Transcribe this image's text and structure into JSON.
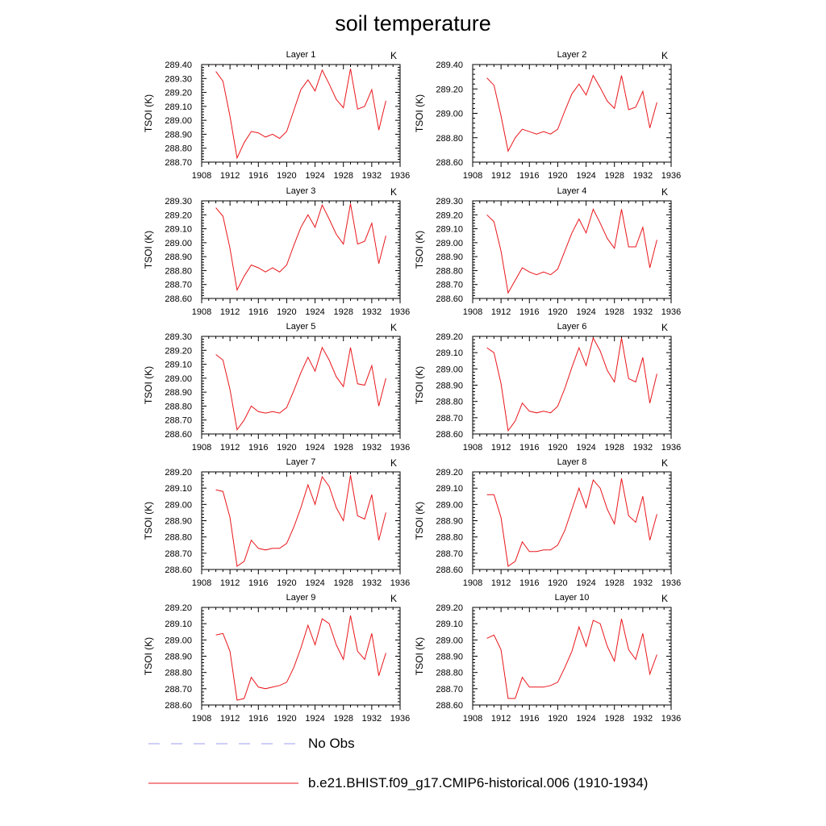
{
  "title": "soil temperature",
  "chart_data": {
    "type": "line",
    "title": "soil temperature",
    "ylabel": "TSOI  (K)",
    "units_label": "K",
    "x_ticks": [
      1908,
      1912,
      1916,
      1920,
      1924,
      1928,
      1932,
      1936
    ],
    "xlim": [
      1908,
      1936
    ],
    "grid": false,
    "legend": {
      "placement": "bottom",
      "entries": [
        {
          "label": "No Obs",
          "style": "dashed",
          "color": "#9c9cf2"
        },
        {
          "label": "b.e21.BHIST.f09_g17.CMIP6-historical.006 (1910-1934)",
          "style": "solid",
          "color": "#e8161b"
        }
      ]
    },
    "series_color": "#e8161b",
    "x": [
      1910,
      1911,
      1912,
      1913,
      1914,
      1915,
      1916,
      1917,
      1918,
      1919,
      1920,
      1921,
      1922,
      1923,
      1924,
      1925,
      1926,
      1927,
      1928,
      1929,
      1930,
      1931,
      1932,
      1933,
      1934
    ],
    "panels": [
      {
        "title": "Layer 1",
        "ylim": [
          288.7,
          289.4
        ],
        "y_ticks": [
          "288.70",
          "288.80",
          "288.90",
          "289.00",
          "289.10",
          "289.20",
          "289.30",
          "289.40"
        ],
        "values": [
          289.35,
          289.28,
          289.03,
          288.73,
          288.84,
          288.92,
          288.91,
          288.88,
          288.9,
          288.87,
          288.92,
          289.07,
          289.22,
          289.29,
          289.21,
          289.36,
          289.26,
          289.15,
          289.09,
          289.37,
          289.08,
          289.1,
          289.22,
          288.93,
          289.14
        ]
      },
      {
        "title": "Layer 2",
        "ylim": [
          288.6,
          289.4
        ],
        "y_ticks": [
          "288.60",
          "288.80",
          "289.00",
          "289.20",
          "289.40"
        ],
        "values": [
          289.29,
          289.23,
          288.98,
          288.69,
          288.8,
          288.87,
          288.85,
          288.83,
          288.85,
          288.83,
          288.87,
          289.02,
          289.16,
          289.24,
          289.15,
          289.31,
          289.21,
          289.1,
          289.04,
          289.31,
          289.03,
          289.05,
          289.18,
          288.88,
          289.09
        ]
      },
      {
        "title": "Layer 3",
        "ylim": [
          288.6,
          289.3
        ],
        "y_ticks": [
          "288.60",
          "288.70",
          "288.80",
          "288.90",
          "289.00",
          "289.10",
          "289.20",
          "289.30"
        ],
        "values": [
          289.25,
          289.19,
          288.96,
          288.66,
          288.76,
          288.84,
          288.82,
          288.79,
          288.82,
          288.79,
          288.84,
          288.98,
          289.11,
          289.2,
          289.11,
          289.27,
          289.17,
          289.06,
          288.99,
          289.28,
          288.99,
          289.01,
          289.14,
          288.85,
          289.05
        ]
      },
      {
        "title": "Layer 4",
        "ylim": [
          288.6,
          289.3
        ],
        "y_ticks": [
          "288.60",
          "288.70",
          "288.80",
          "288.90",
          "289.00",
          "289.10",
          "289.20",
          "289.30"
        ],
        "values": [
          289.2,
          289.15,
          288.94,
          288.64,
          288.73,
          288.82,
          288.79,
          288.77,
          288.79,
          288.77,
          288.81,
          288.94,
          289.07,
          289.17,
          289.07,
          289.24,
          289.14,
          289.03,
          288.96,
          289.24,
          288.97,
          288.97,
          289.11,
          288.82,
          289.02
        ]
      },
      {
        "title": "Layer 5",
        "ylim": [
          288.6,
          289.3
        ],
        "y_ticks": [
          "288.60",
          "288.70",
          "288.80",
          "288.90",
          "289.00",
          "289.10",
          "289.20",
          "289.30"
        ],
        "values": [
          289.17,
          289.13,
          288.92,
          288.63,
          288.7,
          288.8,
          288.76,
          288.75,
          288.76,
          288.75,
          288.79,
          288.91,
          289.04,
          289.15,
          289.05,
          289.22,
          289.13,
          289.01,
          288.94,
          289.22,
          288.96,
          288.95,
          289.09,
          288.8,
          289.0
        ]
      },
      {
        "title": "Layer 6",
        "ylim": [
          288.6,
          289.2
        ],
        "y_ticks": [
          "288.60",
          "288.70",
          "288.80",
          "288.90",
          "289.00",
          "289.10",
          "289.20"
        ],
        "values": [
          289.13,
          289.1,
          288.91,
          288.62,
          288.68,
          288.79,
          288.74,
          288.73,
          288.74,
          288.73,
          288.77,
          288.88,
          289.01,
          289.13,
          289.02,
          289.19,
          289.11,
          288.99,
          288.92,
          289.19,
          288.94,
          288.92,
          289.07,
          288.79,
          288.97
        ]
      },
      {
        "title": "Layer 7",
        "ylim": [
          288.6,
          289.2
        ],
        "y_ticks": [
          "288.60",
          "288.70",
          "288.80",
          "288.90",
          "289.00",
          "289.10",
          "289.20"
        ],
        "values": [
          289.09,
          289.08,
          288.92,
          288.62,
          288.65,
          288.78,
          288.73,
          288.72,
          288.73,
          288.73,
          288.76,
          288.86,
          288.98,
          289.12,
          289.0,
          289.17,
          289.11,
          288.98,
          288.9,
          289.18,
          288.93,
          288.91,
          289.06,
          288.78,
          288.95
        ]
      },
      {
        "title": "Layer 8",
        "ylim": [
          288.6,
          289.2
        ],
        "y_ticks": [
          "288.60",
          "288.70",
          "288.80",
          "288.90",
          "289.00",
          "289.10",
          "289.20"
        ],
        "values": [
          289.06,
          289.06,
          288.92,
          288.62,
          288.65,
          288.77,
          288.71,
          288.71,
          288.72,
          288.72,
          288.75,
          288.84,
          288.97,
          289.1,
          288.98,
          289.15,
          289.1,
          288.97,
          288.88,
          289.16,
          288.93,
          288.89,
          289.05,
          288.78,
          288.94
        ]
      },
      {
        "title": "Layer 9",
        "ylim": [
          288.6,
          289.2
        ],
        "y_ticks": [
          "288.60",
          "288.70",
          "288.80",
          "288.90",
          "289.00",
          "289.10",
          "289.20"
        ],
        "values": [
          289.03,
          289.04,
          288.93,
          288.63,
          288.64,
          288.77,
          288.71,
          288.7,
          288.71,
          288.72,
          288.74,
          288.83,
          288.95,
          289.09,
          288.97,
          289.13,
          289.1,
          288.97,
          288.88,
          289.15,
          288.93,
          288.88,
          289.04,
          288.78,
          288.92
        ]
      },
      {
        "title": "Layer 10",
        "ylim": [
          288.6,
          289.2
        ],
        "y_ticks": [
          "288.60",
          "288.70",
          "288.80",
          "288.90",
          "289.00",
          "289.10",
          "289.20"
        ],
        "values": [
          289.01,
          289.03,
          288.94,
          288.64,
          288.64,
          288.77,
          288.71,
          288.71,
          288.71,
          288.72,
          288.74,
          288.83,
          288.93,
          289.08,
          288.96,
          289.12,
          289.1,
          288.96,
          288.87,
          289.13,
          288.94,
          288.88,
          289.04,
          288.79,
          288.91
        ]
      }
    ]
  }
}
